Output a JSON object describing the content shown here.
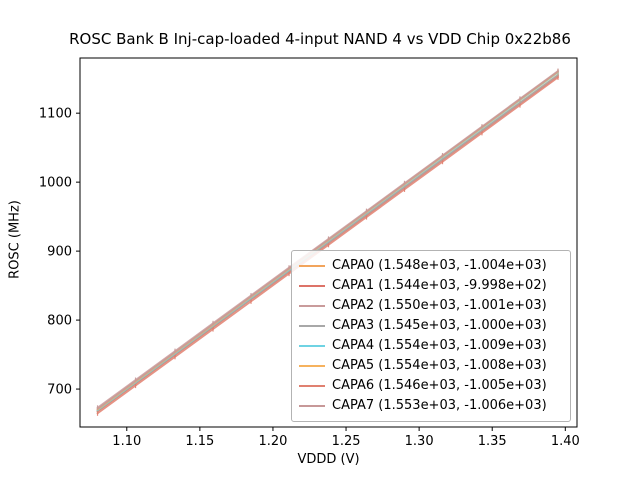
{
  "title": "ROSC Bank B Inj-cap-loaded 4-input NAND 4 vs VDD Chip 0x22b86",
  "chart_data": {
    "type": "line",
    "title": "ROSC Bank B Inj-cap-loaded 4-input NAND 4 vs VDD Chip 0x22b86",
    "xlabel": "VDDD (V)",
    "ylabel": "ROSC (MHz)",
    "xlim": [
      1.068,
      1.408
    ],
    "ylim": [
      645,
      1180
    ],
    "xticks": [
      1.1,
      1.15,
      1.2,
      1.25,
      1.3,
      1.35,
      1.4
    ],
    "yticks": [
      700,
      800,
      900,
      1000,
      1100
    ],
    "grid": false,
    "legend_position": "lower-right-inside",
    "x": [
      1.08,
      1.106,
      1.133,
      1.159,
      1.185,
      1.211,
      1.238,
      1.264,
      1.29,
      1.316,
      1.343,
      1.369,
      1.395
    ],
    "yerr": 3.5,
    "series": [
      {
        "name": "CAPA0",
        "label": "CAPA0 (1.548e+03, -1.004e+03)",
        "slope": 1548.0,
        "intercept": -1004.0,
        "color": "#f2a45c",
        "values": [
          667.8,
          708.1,
          749.9,
          790.1,
          830.4,
          870.6,
          912.4,
          952.7,
          993.0,
          1033.2,
          1075.0,
          1115.2,
          1155.5
        ]
      },
      {
        "name": "CAPA1",
        "label": "CAPA1 (1.544e+03, -9.998e+02)",
        "slope": 1544.0,
        "intercept": -999.8,
        "color": "#dd7368",
        "values": [
          667.7,
          707.8,
          749.6,
          789.7,
          829.8,
          870.0,
          911.7,
          951.8,
          992.0,
          1032.1,
          1073.8,
          1114.0,
          1154.1
        ]
      },
      {
        "name": "CAPA2",
        "label": "CAPA2 (1.550e+03, -1.001e+03)",
        "slope": 1550.0,
        "intercept": -1001.0,
        "color": "#c99b9b",
        "values": [
          673.0,
          713.3,
          755.2,
          795.5,
          835.8,
          876.1,
          917.9,
          958.2,
          998.5,
          1038.8,
          1080.7,
          1121.0,
          1161.3
        ]
      },
      {
        "name": "CAPA3",
        "label": "CAPA3 (1.545e+03, -1.000e+03)",
        "slope": 1545.0,
        "intercept": -1000.0,
        "color": "#a8a8a8",
        "values": [
          668.6,
          708.8,
          750.5,
          790.7,
          830.8,
          871.0,
          912.7,
          952.9,
          993.1,
          1033.2,
          1074.9,
          1115.1,
          1155.3
        ]
      },
      {
        "name": "CAPA4",
        "label": "CAPA4 (1.554e+03, -1.009e+03)",
        "slope": 1554.0,
        "intercept": -1009.0,
        "color": "#6fd3e3",
        "values": [
          669.3,
          709.7,
          751.7,
          792.1,
          832.5,
          872.9,
          914.9,
          955.3,
          995.7,
          1036.1,
          1078.0,
          1118.4,
          1158.8
        ]
      },
      {
        "name": "CAPA5",
        "label": "CAPA5 (1.554e+03, -1.008e+03)",
        "slope": 1554.0,
        "intercept": -1008.0,
        "color": "#f6b25e",
        "values": [
          670.3,
          710.7,
          752.7,
          793.1,
          833.5,
          873.9,
          915.9,
          956.3,
          996.7,
          1037.1,
          1079.0,
          1119.4,
          1159.8
        ]
      },
      {
        "name": "CAPA6",
        "label": "CAPA6 (1.546e+03, -1.005e+03)",
        "slope": 1546.0,
        "intercept": -1005.0,
        "color": "#e08070",
        "values": [
          664.7,
          704.9,
          746.6,
          786.8,
          827.0,
          867.2,
          909.0,
          949.2,
          989.3,
          1029.5,
          1071.3,
          1111.5,
          1151.7
        ]
      },
      {
        "name": "CAPA7",
        "label": "CAPA7 (1.553e+03, -1.006e+03)",
        "slope": 1553.0,
        "intercept": -1006.0,
        "color": "#c79898",
        "values": [
          671.2,
          711.6,
          753.5,
          793.9,
          834.3,
          874.7,
          916.6,
          957.0,
          997.4,
          1037.7,
          1079.7,
          1120.1,
          1160.4
        ]
      }
    ]
  }
}
